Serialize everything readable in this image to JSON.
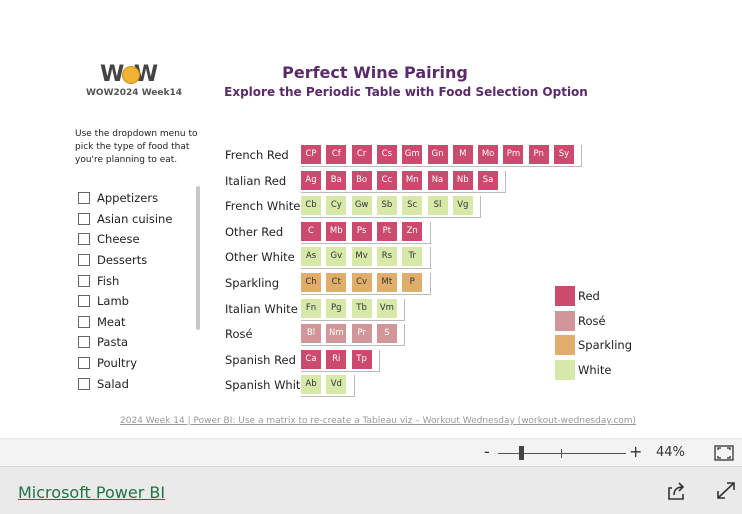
{
  "header": {
    "logo_text": "W W",
    "logo_subtitle": "WOW2024 Week14",
    "title": "Perfect Wine Pairing",
    "subtitle": "Explore the Periodic Table with Food Selection Option"
  },
  "instructions": "Use the dropdown menu to pick the type of food that you're planning to eat.",
  "food_slicer": {
    "items": [
      {
        "label": "Appetizers",
        "checked": false
      },
      {
        "label": "Asian cuisine",
        "checked": false
      },
      {
        "label": "Cheese",
        "checked": false
      },
      {
        "label": "Desserts",
        "checked": false
      },
      {
        "label": "Fish",
        "checked": false
      },
      {
        "label": "Lamb",
        "checked": false
      },
      {
        "label": "Meat",
        "checked": false
      },
      {
        "label": "Pasta",
        "checked": false
      },
      {
        "label": "Poultry",
        "checked": false
      },
      {
        "label": "Salad",
        "checked": false
      }
    ]
  },
  "periodic_table": {
    "rows": [
      {
        "label": "French Red",
        "type": "Red",
        "tiles": [
          "CP",
          "Cf",
          "Cr",
          "Cs",
          "Gm",
          "Gn",
          "M",
          "Mo",
          "Pm",
          "Pn",
          "Sy"
        ]
      },
      {
        "label": "Italian Red",
        "type": "Red",
        "tiles": [
          "Ag",
          "Ba",
          "Bo",
          "Cc",
          "Mn",
          "Na",
          "Nb",
          "Sa"
        ]
      },
      {
        "label": "French White",
        "type": "White",
        "tiles": [
          "Cb",
          "Cy",
          "Gw",
          "Sb",
          "Sc",
          "Sl",
          "Vg"
        ]
      },
      {
        "label": "Other Red",
        "type": "Red",
        "tiles": [
          "C",
          "Mb",
          "Ps",
          "Pt",
          "Zn"
        ]
      },
      {
        "label": "Other White",
        "type": "White",
        "tiles": [
          "As",
          "Gv",
          "Mv",
          "Rs",
          "Tr"
        ]
      },
      {
        "label": "Sparkling",
        "type": "Sparkling",
        "tiles": [
          "Ch",
          "Ct",
          "Cv",
          "Mt",
          "P"
        ]
      },
      {
        "label": "Italian White",
        "type": "White",
        "tiles": [
          "Fn",
          "Pg",
          "Tb",
          "Vm"
        ]
      },
      {
        "label": "Rosé",
        "type": "Rosé",
        "tiles": [
          "Bl",
          "Nm",
          "Pr",
          "S"
        ]
      },
      {
        "label": "Spanish Red",
        "type": "Red",
        "tiles": [
          "Ca",
          "Ri",
          "Tp"
        ]
      },
      {
        "label": "Spanish White",
        "type": "White",
        "tiles": [
          "Ab",
          "Vd"
        ]
      }
    ]
  },
  "legend": {
    "items": [
      {
        "label": "Red",
        "color": "#cd4a6f"
      },
      {
        "label": "Rosé",
        "color": "#d29598"
      },
      {
        "label": "Sparkling",
        "color": "#e1ad6a"
      },
      {
        "label": "White",
        "color": "#d7e8a8"
      }
    ]
  },
  "footer_link": "2024 Week 14 | Power BI: Use a matrix to re-create a Tableau viz – Workout Wednesday (workout-wednesday.com)",
  "zoom": {
    "minus": "-",
    "plus": "+",
    "level_label": "44%",
    "level": 44
  },
  "bottom_bar": {
    "brand": "Microsoft Power BI",
    "share_icon": "share-icon",
    "expand_icon": "expand-icon"
  },
  "colors": {
    "title": "#5b2a6a",
    "red": "#cd4a6f",
    "rose": "#d29598",
    "sparkling": "#e1ad6a",
    "white": "#d7e8a8",
    "brand": "#217346"
  }
}
